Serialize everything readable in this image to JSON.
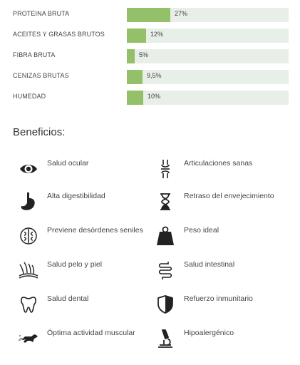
{
  "nutrients": [
    {
      "label": "PROTEINA BRUTA",
      "percent_text": "27%",
      "fraction": 0.27
    },
    {
      "label": "ACEITES Y GRASAS BRUTOS",
      "percent_text": "12%",
      "fraction": 0.12
    },
    {
      "label": "FIBRA BRUTA",
      "percent_text": "5%",
      "fraction": 0.05
    },
    {
      "label": "CENIZAS BRUTAS",
      "percent_text": "9,5%",
      "fraction": 0.095
    },
    {
      "label": "HUMEDAD",
      "percent_text": "10%",
      "fraction": 0.1
    }
  ],
  "colors": {
    "bar_fill": "#94c06a",
    "bar_track": "#e8eee8",
    "text": "#444444"
  },
  "benefits": {
    "title": "Beneficios:",
    "items": [
      {
        "label": "Salud ocular",
        "icon": "eye-icon"
      },
      {
        "label": "Articulaciones sanas",
        "icon": "joint-icon"
      },
      {
        "label": "Alta digestibilidad",
        "icon": "stomach-icon"
      },
      {
        "label": "Retraso del envejecimiento",
        "icon": "hourglass-icon"
      },
      {
        "label": "Previene desórdenes seniles",
        "icon": "brain-icon"
      },
      {
        "label": "Peso ideal",
        "icon": "weight-icon"
      },
      {
        "label": "Salud pelo y piel",
        "icon": "hair-skin-icon"
      },
      {
        "label": "Salud intestinal",
        "icon": "intestine-icon"
      },
      {
        "label": "Salud dental",
        "icon": "tooth-icon"
      },
      {
        "label": "Refuerzo inmunitario",
        "icon": "shield-icon"
      },
      {
        "label": "Óptima actividad muscular",
        "icon": "running-dog-icon"
      },
      {
        "label": "Hipoalergénico",
        "icon": "microscope-icon"
      }
    ]
  }
}
